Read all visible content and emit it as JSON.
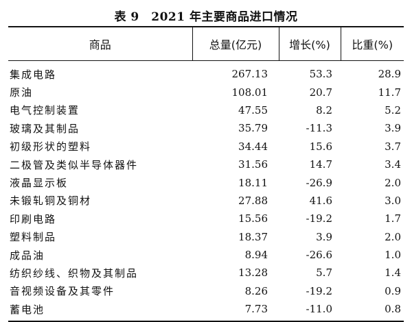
{
  "title": "表 9　2021 年主要商品进口情况",
  "headers": [
    "商品",
    "总量(亿元)",
    "增长(%)",
    "比重(%)"
  ],
  "rows": [
    {
      "name": "集成电路",
      "total": "267.13",
      "growth": "53.3",
      "share": "28.9"
    },
    {
      "name": "原油",
      "total": "108.01",
      "growth": "20.7",
      "share": "11.7"
    },
    {
      "name": "电气控制装置",
      "total": "47.55",
      "growth": "8.2",
      "share": "5.2"
    },
    {
      "name": "玻璃及其制品",
      "total": "35.79",
      "growth": "-11.3",
      "share": "3.9"
    },
    {
      "name": "初级形状的塑料",
      "total": "34.44",
      "growth": "15.6",
      "share": "3.7"
    },
    {
      "name": "二极管及类似半导体器件",
      "total": "31.56",
      "growth": "14.7",
      "share": "3.4"
    },
    {
      "name": "液晶显示板",
      "total": "18.11",
      "growth": "-26.9",
      "share": "2.0"
    },
    {
      "name": "未锻轧铜及铜材",
      "total": "27.88",
      "growth": "41.6",
      "share": "3.0"
    },
    {
      "name": "印刷电路",
      "total": "15.56",
      "growth": "-19.2",
      "share": "1.7"
    },
    {
      "name": "塑料制品",
      "total": "18.37",
      "growth": "3.9",
      "share": "2.0"
    },
    {
      "name": "成品油",
      "total": "8.94",
      "growth": "-26.6",
      "share": "1.0"
    },
    {
      "name": "纺织纱线、织物及其制品",
      "total": "13.28",
      "growth": "5.7",
      "share": "1.4"
    },
    {
      "name": "音视频设备及其零件",
      "total": "8.26",
      "growth": "-19.2",
      "share": "0.9"
    },
    {
      "name": "蓄电池",
      "total": "7.73",
      "growth": "-11.0",
      "share": "0.8"
    }
  ]
}
